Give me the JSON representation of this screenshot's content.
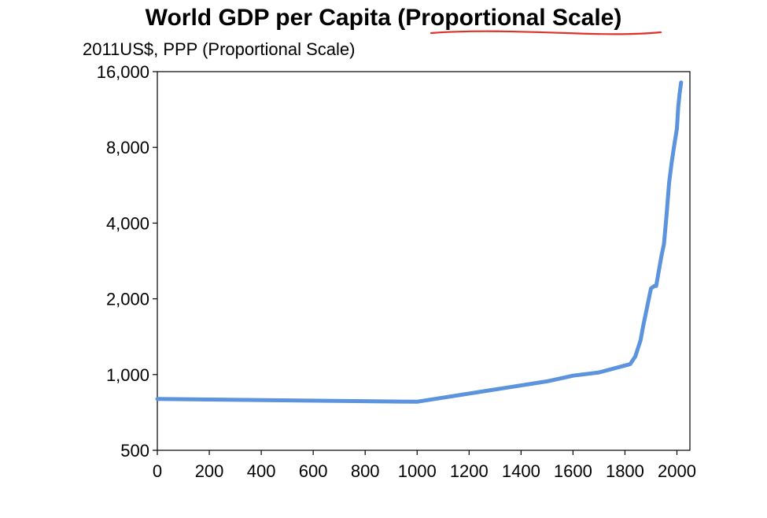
{
  "chart_data": {
    "type": "line",
    "title": "World GDP per Capita (Proportional Scale)",
    "subtitle": "2011US$, PPP (Proportional Scale)",
    "xlabel": "",
    "ylabel": "",
    "y_scale": "log2",
    "xlim": [
      0,
      2050
    ],
    "ylim": [
      500,
      16000
    ],
    "x_ticks": [
      0,
      200,
      400,
      600,
      800,
      1000,
      1200,
      1400,
      1600,
      1800,
      2000
    ],
    "x_tick_labels": [
      "0",
      "200",
      "400",
      "600",
      "800",
      "1000",
      "1200",
      "1400",
      "1600",
      "1800",
      "2000"
    ],
    "y_ticks": [
      500,
      1000,
      2000,
      4000,
      8000,
      16000
    ],
    "y_tick_labels": [
      "500",
      "1,000",
      "2,000",
      "4,000",
      "8,000",
      "16,000"
    ],
    "grid": false,
    "legend": "none",
    "line_color": "#5b93dc",
    "annotation_color": "#e0302a",
    "series": [
      {
        "x": [
          0,
          1000,
          1500,
          1600,
          1700,
          1820,
          1840,
          1860,
          1870,
          1900,
          1913,
          1920,
          1940,
          1950,
          1960,
          1970,
          1980,
          1990,
          2000,
          2005,
          2010,
          2016
        ],
        "y": [
          800,
          780,
          940,
          990,
          1020,
          1100,
          1180,
          1370,
          1560,
          2200,
          2250,
          2250,
          2950,
          3300,
          4300,
          5800,
          7000,
          8200,
          9500,
          11500,
          13000,
          14500
        ]
      }
    ]
  }
}
